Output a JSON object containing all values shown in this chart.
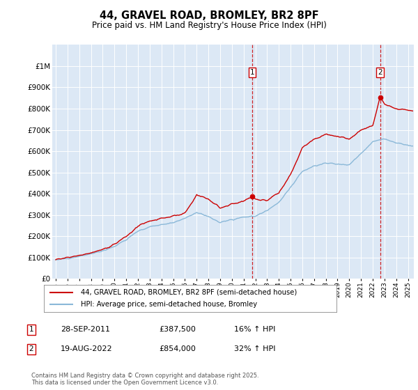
{
  "title": "44, GRAVEL ROAD, BROMLEY, BR2 8PF",
  "subtitle": "Price paid vs. HM Land Registry's House Price Index (HPI)",
  "legend_label_red": "44, GRAVEL ROAD, BROMLEY, BR2 8PF (semi-detached house)",
  "legend_label_blue": "HPI: Average price, semi-detached house, Bromley",
  "annotation1_date": "28-SEP-2011",
  "annotation1_price": "£387,500",
  "annotation1_hpi": "16% ↑ HPI",
  "annotation2_date": "19-AUG-2022",
  "annotation2_price": "£854,000",
  "annotation2_hpi": "32% ↑ HPI",
  "footer": "Contains HM Land Registry data © Crown copyright and database right 2025.\nThis data is licensed under the Open Government Licence v3.0.",
  "ylim_max": 1100000,
  "ylim_min": 0,
  "year_start": 1995,
  "year_end": 2025,
  "sale1_year": 2011.74,
  "sale1_price": 387500,
  "sale2_year": 2022.63,
  "sale2_price": 854000,
  "background_color": "#dce8f5",
  "red_color": "#cc0000",
  "blue_color": "#8ab8d8",
  "grid_color": "#ffffff",
  "yticks": [
    0,
    100000,
    200000,
    300000,
    400000,
    500000,
    600000,
    700000,
    800000,
    900000,
    1000000
  ]
}
